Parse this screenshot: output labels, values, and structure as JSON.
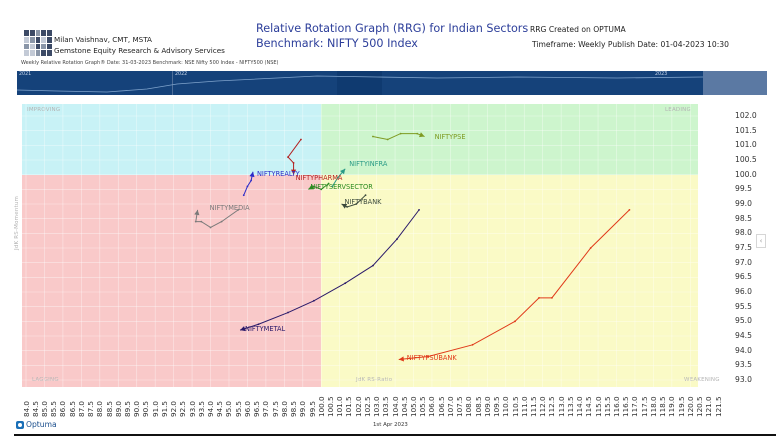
{
  "header": {
    "author_line1": "Milan Vaishnav, CMT, MSTA",
    "author_line2": "Gemstone Equity Research & Advisory Services",
    "title_line1": "Relative Rotation Graph (RRG) for Indian Sectors",
    "title_line2": "Benchmark: NIFTY 500 Index",
    "created_on": "RRG Created on OPTUMA",
    "timeframe_publish": "Timeframe: Weekly  Publish Date: 01-04-2023 10:30",
    "subheader": "Weekly Relative Rotation Graph®    Date: 31-03-2023  Benchmark: NSE Nifty 500 Index - NIFTY500 (NSE)"
  },
  "timeline": {
    "years": [
      "2021",
      "2022",
      "2023"
    ]
  },
  "quadrants": {
    "improving": "IMPROVING",
    "leading": "LEADING",
    "lagging": "LAGGING",
    "weakening": "WEAKENING",
    "y_axis_title": "JdK RS-Momentum",
    "x_axis_title": "JdK RS-Ratio"
  },
  "footer": {
    "brand": "Optuma",
    "date": "1st Apr 2023"
  },
  "collapse_icon": "‹",
  "chart_data": {
    "type": "scatter",
    "title": "Relative Rotation Graph (RRG) for Indian Sectors",
    "subtitle": "Benchmark: NIFTY 500 Index",
    "xlabel": "JdK RS-Ratio",
    "ylabel": "JdK RS-Momentum",
    "xlim": [
      84.0,
      121.5
    ],
    "ylim": [
      93.0,
      102.0
    ],
    "center": [
      100.0,
      100.0
    ],
    "grid": true,
    "x_ticks": [
      "84.0",
      "84.5",
      "85.0",
      "85.5",
      "86.0",
      "86.5",
      "87.0",
      "87.5",
      "88.0",
      "88.5",
      "89.0",
      "89.5",
      "90.0",
      "90.5",
      "91.0",
      "91.5",
      "92.0",
      "92.5",
      "93.0",
      "93.5",
      "94.0",
      "94.5",
      "95.0",
      "95.5",
      "96.0",
      "96.5",
      "97.0",
      "97.5",
      "98.0",
      "98.5",
      "99.0",
      "99.5",
      "100.0",
      "100.5",
      "101.0",
      "101.5",
      "102.0",
      "102.5",
      "103.0",
      "103.5",
      "104.0",
      "104.5",
      "105.0",
      "105.5",
      "106.0",
      "106.5",
      "107.0",
      "107.5",
      "108.0",
      "108.5",
      "109.0",
      "109.5",
      "110.0",
      "110.5",
      "111.0",
      "111.5",
      "112.0",
      "112.5",
      "113.0",
      "113.5",
      "114.0",
      "114.5",
      "115.0",
      "115.5",
      "116.0",
      "116.5",
      "117.0",
      "117.5",
      "118.0",
      "118.5",
      "119.0",
      "119.5",
      "120.0",
      "120.5",
      "121.0",
      "121.5"
    ],
    "y_ticks": [
      "102.0",
      "101.5",
      "101.0",
      "100.5",
      "100.0",
      "99.5",
      "99.0",
      "98.5",
      "98.0",
      "97.5",
      "97.0",
      "96.5",
      "96.0",
      "95.5",
      "95.0",
      "94.5",
      "94.0",
      "93.5",
      "93.0"
    ],
    "series": [
      {
        "name": "NIFTYPSE",
        "color": "#7f9a22",
        "tail": [
          [
            102.8,
            101.3
          ],
          [
            103.6,
            101.2
          ],
          [
            104.3,
            101.4
          ],
          [
            105.2,
            101.4
          ],
          [
            105.6,
            101.3
          ]
        ],
        "head": [
          105.6,
          101.3
        ]
      },
      {
        "name": "NIFTYINFRA",
        "color": "#2a9a86",
        "tail": [
          [
            100.6,
            99.6
          ],
          [
            100.9,
            99.9
          ],
          [
            101.3,
            100.2
          ]
        ],
        "head": [
          101.3,
          100.2
        ]
      },
      {
        "name": "NIFTYREALTY",
        "color": "#2c2cc8",
        "tail": [
          [
            95.8,
            99.3
          ],
          [
            96.0,
            99.6
          ],
          [
            96.2,
            99.8
          ],
          [
            96.3,
            100.1
          ]
        ],
        "head": [
          96.3,
          100.1
        ]
      },
      {
        "name": "NIFTYPHARMA",
        "color": "#b32020",
        "tail": [
          [
            98.9,
            101.2
          ],
          [
            98.2,
            100.6
          ],
          [
            98.5,
            100.4
          ],
          [
            98.5,
            100.0
          ]
        ],
        "head": [
          98.5,
          100.0
        ]
      },
      {
        "name": "NIFTYSERVSECTOR",
        "color": "#2a8a22",
        "tail": [
          [
            100.4,
            99.7
          ],
          [
            100.0,
            99.5
          ],
          [
            99.6,
            99.6
          ],
          [
            99.3,
            99.5
          ]
        ],
        "head": [
          99.3,
          99.5
        ]
      },
      {
        "name": "NIFTYBANK",
        "color": "#3c4a3c",
        "tail": [
          [
            102.4,
            99.3
          ],
          [
            101.9,
            99.0
          ],
          [
            101.4,
            98.9
          ],
          [
            101.1,
            99.0
          ]
        ],
        "head": [
          101.1,
          99.0
        ]
      },
      {
        "name": "NIFTYMEDIA",
        "color": "#7a7a7a",
        "tail": [
          [
            95.5,
            98.8
          ],
          [
            94.6,
            98.4
          ],
          [
            94.0,
            98.2
          ],
          [
            93.5,
            98.4
          ],
          [
            93.2,
            98.4
          ],
          [
            93.3,
            98.8
          ]
        ],
        "head": [
          93.3,
          98.8
        ]
      },
      {
        "name": "NIFTYMETAL",
        "color": "#2a1a6a",
        "tail": [
          [
            105.3,
            98.8
          ],
          [
            104.1,
            97.8
          ],
          [
            102.8,
            96.9
          ],
          [
            101.3,
            96.3
          ],
          [
            99.6,
            95.7
          ],
          [
            98.2,
            95.3
          ],
          [
            96.6,
            94.9
          ],
          [
            95.6,
            94.7
          ]
        ],
        "head": [
          95.6,
          94.7
        ]
      },
      {
        "name": "NIFTYPSUBANK",
        "color": "#e03a1a",
        "tail": [
          [
            116.7,
            98.8
          ],
          [
            114.6,
            97.5
          ],
          [
            112.5,
            95.8
          ],
          [
            111.8,
            95.8
          ],
          [
            110.5,
            95.0
          ],
          [
            108.2,
            94.2
          ],
          [
            105.8,
            93.8
          ],
          [
            104.2,
            93.7
          ]
        ],
        "head": [
          104.2,
          93.7
        ]
      }
    ]
  }
}
